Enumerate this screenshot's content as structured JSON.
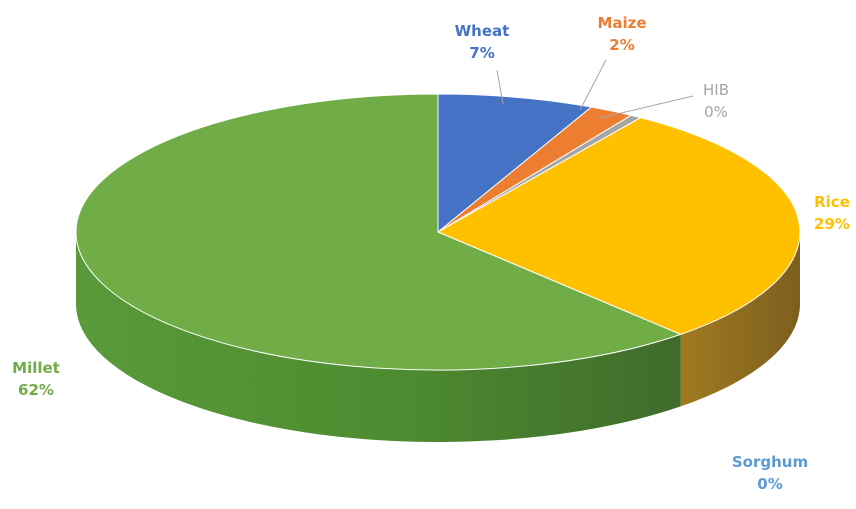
{
  "chart_data": {
    "type": "pie",
    "style": "3d",
    "slices": [
      {
        "label": "Wheat",
        "value": 7,
        "percent_label": "7%",
        "color": "#4472C4"
      },
      {
        "label": "Maize",
        "value": 2,
        "percent_label": "2%",
        "color": "#ED7D31"
      },
      {
        "label": "HIB",
        "value": 0.5,
        "percent_label": "0%",
        "color": "#A5A5A5"
      },
      {
        "label": "Rice",
        "value": 29,
        "percent_label": "29%",
        "color": "#FFC000"
      },
      {
        "label": "Sorghum",
        "value": 0,
        "percent_label": "0%",
        "color": "#5B9BD5"
      },
      {
        "label": "Millet",
        "value": 62,
        "percent_label": "62%",
        "color": "#70AD47"
      }
    ],
    "legend": false
  }
}
